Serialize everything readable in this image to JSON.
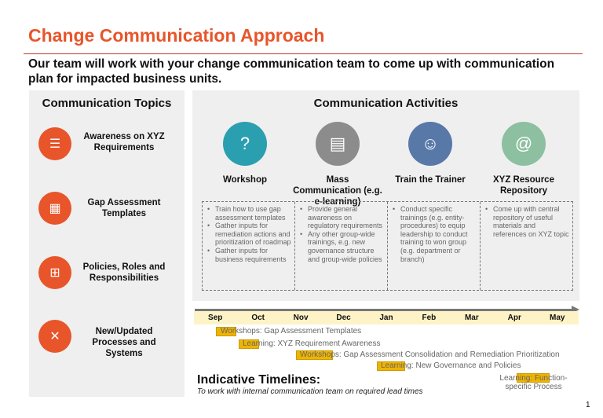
{
  "title": "Change Communication Approach",
  "subtitle": "Our team will work with your change communication team to come up with communication plan for impacted business units.",
  "topics": {
    "heading": "Communication Topics",
    "items": [
      {
        "label": "Awareness on XYZ Requirements",
        "icon": "checklist-icon"
      },
      {
        "label": "Gap Assessment Templates",
        "icon": "table-icon"
      },
      {
        "label": "Policies, Roles and Responsibilities",
        "icon": "org-chart-icon"
      },
      {
        "label": "New/Updated Processes and Systems",
        "icon": "tools-icon"
      }
    ]
  },
  "activities": {
    "heading": "Communication Activities",
    "items": [
      {
        "label": "Workshop",
        "icon": "chat-question-icon",
        "color": "#2a9fb0",
        "bullets": [
          "Train how to use gap assessment templates",
          "Gather inputs for remediation actions and prioritization of roadmap",
          "Gather inputs for business requirements"
        ]
      },
      {
        "label": "Mass Communication (e.g. e-learning)",
        "icon": "newspaper-icon",
        "color": "#8c8c8c",
        "bullets": [
          "Provide general awareness on regulatory requirements",
          "Any other group-wide trainings, e.g. new governance structure and group-wide policies"
        ]
      },
      {
        "label": "Train the Trainer",
        "icon": "people-icon",
        "color": "#5878a8",
        "bullets": [
          "Conduct specific trainings (e.g. entity-procedures) to equip leadership to conduct training to won group (e.g. department or branch)"
        ]
      },
      {
        "label": "XYZ Resource Repository",
        "icon": "email-icon",
        "color": "#8cc0a0",
        "bullets": [
          "Come up with central repository of useful materials and references on XYZ topic"
        ]
      }
    ]
  },
  "timeline": {
    "months": [
      "Sep",
      "Oct",
      "Nov",
      "Dec",
      "Jan",
      "Feb",
      "Mar",
      "Apr",
      "May"
    ],
    "items": [
      "Workshops: Gap Assessment Templates",
      "Learning: XYZ Requirement Awareness",
      "Workshops: Gap Assessment Consolidation and Remediation Prioritization",
      "Learning: New Governance and Policies",
      "Learning: Function-specific Process"
    ],
    "title": "Indicative Timelines:",
    "note": "To work with internal communication team on required lead times"
  },
  "page_number": "1"
}
